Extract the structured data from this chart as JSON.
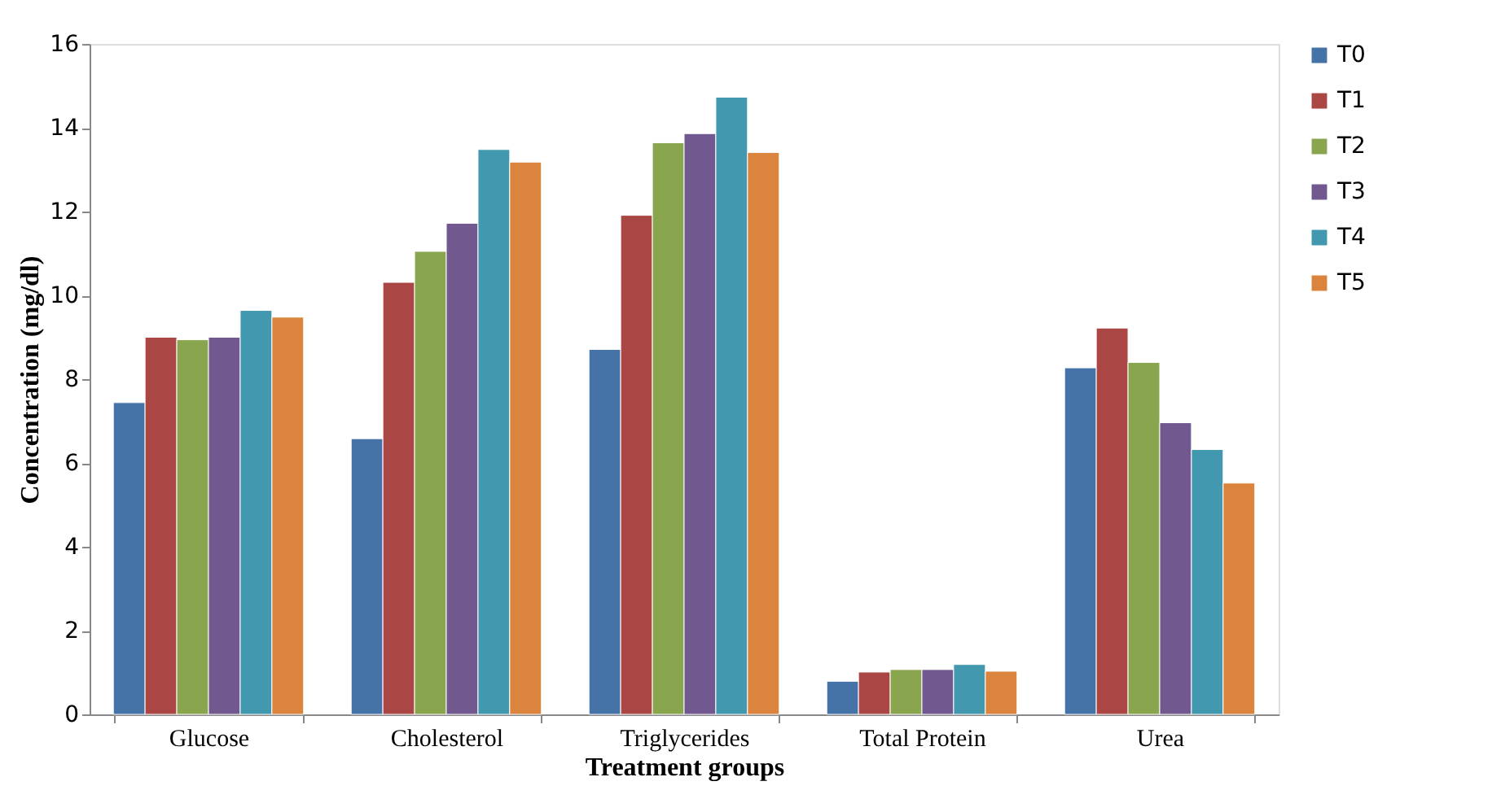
{
  "chart_data": {
    "type": "bar",
    "xlabel": "Treatment groups",
    "ylabel": "Concentration (mg/dl)",
    "categories": [
      "Glucose",
      "Cholesterol",
      "Triglycerides",
      "Total Protein",
      "Urea"
    ],
    "series": [
      {
        "name": "T0",
        "color": "#4572a7",
        "values": [
          7.44,
          6.58,
          8.71,
          0.79,
          8.27
        ]
      },
      {
        "name": "T1",
        "color": "#aa4643",
        "values": [
          9.0,
          10.31,
          11.91,
          1.01,
          9.22
        ]
      },
      {
        "name": "T2",
        "color": "#89a54e",
        "values": [
          8.94,
          11.05,
          13.64,
          1.07,
          8.4
        ]
      },
      {
        "name": "T3",
        "color": "#71588f",
        "values": [
          9.0,
          11.72,
          13.86,
          1.07,
          6.96
        ]
      },
      {
        "name": "T4",
        "color": "#4198af",
        "values": [
          9.64,
          13.48,
          14.73,
          1.19,
          6.32
        ]
      },
      {
        "name": "T5",
        "color": "#db843d",
        "values": [
          9.48,
          13.18,
          13.41,
          1.03,
          5.52
        ]
      }
    ],
    "ylim": [
      0,
      16
    ],
    "yticks": [
      0,
      2,
      4,
      6,
      8,
      10,
      12,
      14,
      16
    ],
    "grid": false,
    "legend": "right"
  }
}
